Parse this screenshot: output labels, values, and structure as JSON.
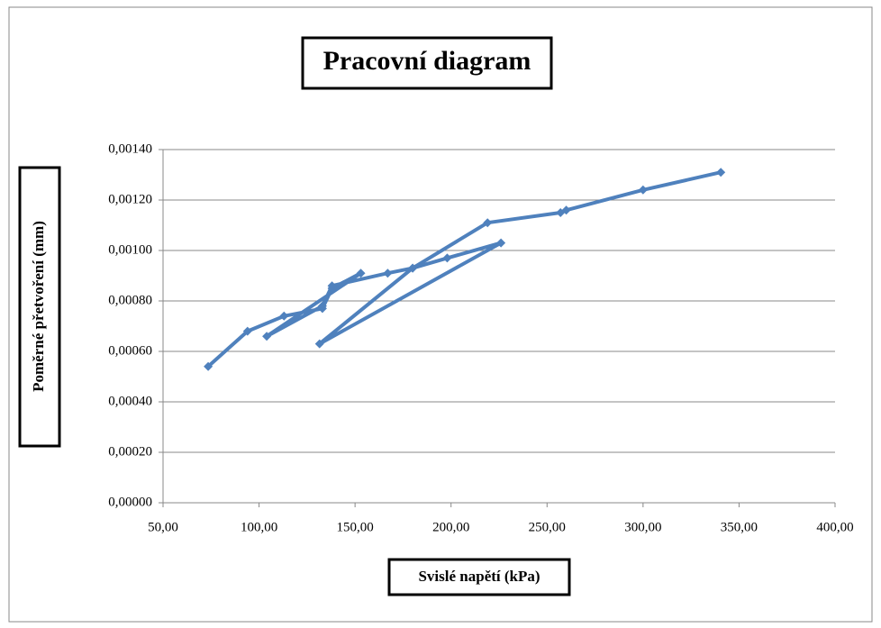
{
  "chart_data": {
    "type": "line",
    "title": "Pracovní diagram",
    "xlabel": "Svislé napětí (kPa)",
    "ylabel": "Poměrné přetvoření (mm)",
    "color": "#4f81bd",
    "grid": true,
    "x": [
      73.5,
      94,
      113,
      133,
      138,
      153,
      104,
      133,
      138,
      167,
      180,
      198,
      226,
      131.5,
      180,
      219,
      257,
      260,
      300,
      340.5
    ],
    "values": [
      0.00054,
      0.00068,
      0.00074,
      0.00077,
      0.00085,
      0.00091,
      0.00066,
      0.00078,
      0.00086,
      0.00091,
      0.00093,
      0.00097,
      0.00103,
      0.00063,
      0.00093,
      0.00111,
      0.00115,
      0.00116,
      0.00124,
      0.00131
    ],
    "xlim": [
      50,
      400
    ],
    "ylim": [
      0,
      0.0014
    ],
    "xticks": [
      {
        "value": 50,
        "label": "50,00"
      },
      {
        "value": 100,
        "label": "100,00"
      },
      {
        "value": 150,
        "label": "150,00"
      },
      {
        "value": 200,
        "label": "200,00"
      },
      {
        "value": 250,
        "label": "250,00"
      },
      {
        "value": 300,
        "label": "300,00"
      },
      {
        "value": 350,
        "label": "350,00"
      },
      {
        "value": 400,
        "label": "400,00"
      }
    ],
    "yticks": [
      {
        "value": 0,
        "label": "0,00000"
      },
      {
        "value": 0.0002,
        "label": "0,00020"
      },
      {
        "value": 0.0004,
        "label": "0,00040"
      },
      {
        "value": 0.0006,
        "label": "0,00060"
      },
      {
        "value": 0.0008,
        "label": "0,00080"
      },
      {
        "value": 0.001,
        "label": "0,00100"
      },
      {
        "value": 0.0012,
        "label": "0,00120"
      },
      {
        "value": 0.0014,
        "label": "0,00140"
      }
    ]
  }
}
